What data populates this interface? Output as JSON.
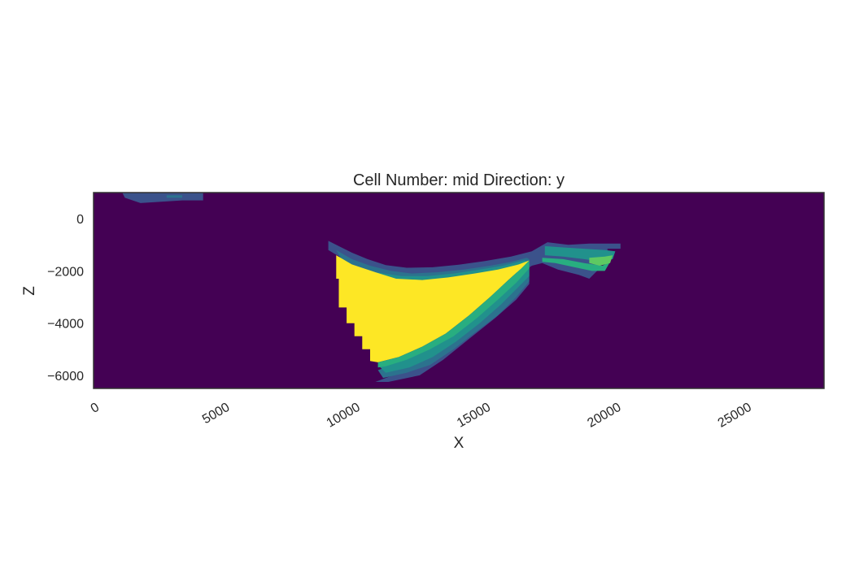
{
  "chart_data": {
    "type": "heatmap",
    "title": "Cell Number: mid Direction: y",
    "xlabel": "X",
    "ylabel": "Z",
    "xlim": [
      0,
      28000
    ],
    "ylim": [
      -6500,
      1000
    ],
    "x_ticks": [
      0,
      5000,
      10000,
      15000,
      20000,
      25000
    ],
    "x_tick_labels": [
      "0",
      "5000",
      "10000",
      "15000",
      "20000",
      "25000"
    ],
    "y_ticks": [
      0,
      -2000,
      -4000,
      -6000
    ],
    "y_tick_labels": [
      "0",
      "−2000",
      "−4000",
      "−6000"
    ],
    "grid": false,
    "colormap": "viridis",
    "colors": {
      "background": "#440154",
      "unit_1": "#3b528b",
      "unit_2": "#2c728e",
      "unit_3": "#21918c",
      "unit_4": "#28ae80",
      "unit_5": "#5ec962",
      "unit_6": "#fde725"
    },
    "regions": [
      {
        "name": "upper-left-thin-layer",
        "color_key": "unit_1",
        "polygon": [
          [
            1100,
            1000
          ],
          [
            3000,
            1000
          ],
          [
            4200,
            1000
          ],
          [
            4200,
            700
          ],
          [
            3400,
            700
          ],
          [
            2600,
            650
          ],
          [
            1800,
            600
          ],
          [
            1200,
            800
          ],
          [
            1100,
            1000
          ]
        ]
      },
      {
        "name": "upper-left-thin-layer-inner",
        "color_key": "unit_2",
        "polygon": [
          [
            2800,
            900
          ],
          [
            3400,
            900
          ],
          [
            3400,
            800
          ],
          [
            2800,
            800
          ]
        ]
      },
      {
        "name": "basin-upper-rim-outer",
        "color_key": "unit_1",
        "polygon": [
          [
            9000,
            -850
          ],
          [
            9400,
            -1050
          ],
          [
            9900,
            -1300
          ],
          [
            10500,
            -1550
          ],
          [
            11200,
            -1780
          ],
          [
            12000,
            -1880
          ],
          [
            13000,
            -1860
          ],
          [
            14000,
            -1760
          ],
          [
            15000,
            -1620
          ],
          [
            16000,
            -1450
          ],
          [
            16800,
            -1250
          ],
          [
            17400,
            -900
          ],
          [
            18200,
            -1000
          ],
          [
            19000,
            -950
          ],
          [
            20200,
            -950
          ],
          [
            20200,
            -1150
          ],
          [
            19700,
            -1150
          ],
          [
            19700,
            -1350
          ],
          [
            19500,
            -1600
          ],
          [
            19300,
            -2000
          ],
          [
            19000,
            -2300
          ],
          [
            18600,
            -2150
          ],
          [
            17800,
            -1950
          ],
          [
            17200,
            -1700
          ],
          [
            16800,
            -1800
          ],
          [
            16200,
            -2200
          ],
          [
            15600,
            -2600
          ],
          [
            15000,
            -3200
          ],
          [
            14300,
            -3800
          ],
          [
            13500,
            -4700
          ],
          [
            12800,
            -5200
          ],
          [
            12000,
            -5800
          ],
          [
            11200,
            -6100
          ],
          [
            10800,
            -6250
          ],
          [
            11300,
            -6250
          ],
          [
            12500,
            -6000
          ],
          [
            13400,
            -5400
          ],
          [
            14400,
            -4600
          ],
          [
            15400,
            -3800
          ],
          [
            16200,
            -3100
          ],
          [
            16700,
            -2500
          ],
          [
            16700,
            -1600
          ],
          [
            16000,
            -1700
          ],
          [
            15000,
            -1850
          ],
          [
            14000,
            -2000
          ],
          [
            13000,
            -2150
          ],
          [
            12000,
            -2300
          ],
          [
            11000,
            -2200
          ],
          [
            10200,
            -1900
          ],
          [
            9500,
            -1500
          ],
          [
            9000,
            -1200
          ]
        ]
      },
      {
        "name": "basin-upper-rim-middle",
        "color_key": "unit_2",
        "polygon": [
          [
            9300,
            -1200
          ],
          [
            9900,
            -1550
          ],
          [
            10600,
            -1800
          ],
          [
            11400,
            -2000
          ],
          [
            12200,
            -2100
          ],
          [
            13200,
            -2050
          ],
          [
            14200,
            -1950
          ],
          [
            15200,
            -1800
          ],
          [
            16000,
            -1650
          ],
          [
            16600,
            -1500
          ],
          [
            16700,
            -1550
          ],
          [
            16700,
            -2400
          ],
          [
            16200,
            -3000
          ],
          [
            15500,
            -3700
          ],
          [
            14700,
            -4300
          ],
          [
            13800,
            -5000
          ],
          [
            12900,
            -5600
          ],
          [
            12000,
            -5900
          ],
          [
            11100,
            -6100
          ],
          [
            10900,
            -5800
          ],
          [
            11800,
            -5500
          ],
          [
            12700,
            -5100
          ],
          [
            13600,
            -4500
          ],
          [
            14500,
            -3800
          ],
          [
            15300,
            -3100
          ],
          [
            16000,
            -2400
          ],
          [
            16500,
            -1900
          ],
          [
            15800,
            -1900
          ],
          [
            14800,
            -2050
          ],
          [
            13800,
            -2200
          ],
          [
            12800,
            -2300
          ],
          [
            11800,
            -2350
          ],
          [
            10800,
            -2200
          ],
          [
            10000,
            -1900
          ],
          [
            9500,
            -1550
          ]
        ]
      },
      {
        "name": "basin-upper-rim-inner",
        "color_key": "unit_3",
        "polygon": [
          [
            9400,
            -1450
          ],
          [
            10000,
            -1800
          ],
          [
            10800,
            -2050
          ],
          [
            11800,
            -2200
          ],
          [
            12800,
            -2200
          ],
          [
            13800,
            -2100
          ],
          [
            14800,
            -1950
          ],
          [
            15700,
            -1800
          ],
          [
            16500,
            -1600
          ],
          [
            16700,
            -1650
          ],
          [
            16700,
            -2200
          ],
          [
            16200,
            -2700
          ],
          [
            15600,
            -3300
          ],
          [
            14800,
            -4000
          ],
          [
            13900,
            -4700
          ],
          [
            13000,
            -5300
          ],
          [
            12100,
            -5700
          ],
          [
            11200,
            -5900
          ],
          [
            10900,
            -5600
          ],
          [
            11900,
            -5300
          ],
          [
            12800,
            -4900
          ],
          [
            13700,
            -4300
          ],
          [
            14600,
            -3600
          ],
          [
            15400,
            -2900
          ],
          [
            16100,
            -2200
          ],
          [
            16400,
            -1850
          ],
          [
            15700,
            -1950
          ],
          [
            14700,
            -2100
          ],
          [
            13700,
            -2250
          ],
          [
            12700,
            -2350
          ],
          [
            11700,
            -2400
          ],
          [
            10700,
            -2250
          ],
          [
            9900,
            -1950
          ],
          [
            9450,
            -1600
          ]
        ]
      },
      {
        "name": "basin-fill",
        "color_key": "unit_6",
        "polygon": [
          [
            9300,
            -1400
          ],
          [
            9900,
            -1750
          ],
          [
            10800,
            -2050
          ],
          [
            11600,
            -2300
          ],
          [
            12600,
            -2350
          ],
          [
            13600,
            -2250
          ],
          [
            14600,
            -2100
          ],
          [
            15500,
            -1950
          ],
          [
            16300,
            -1750
          ],
          [
            16700,
            -1600
          ],
          [
            16400,
            -1900
          ],
          [
            15900,
            -2350
          ],
          [
            15200,
            -3000
          ],
          [
            14400,
            -3700
          ],
          [
            13500,
            -4400
          ],
          [
            12600,
            -4900
          ],
          [
            11700,
            -5300
          ],
          [
            10900,
            -5500
          ],
          [
            10600,
            -5450
          ],
          [
            10600,
            -5000
          ],
          [
            10300,
            -5000
          ],
          [
            10300,
            -4500
          ],
          [
            10000,
            -4500
          ],
          [
            10000,
            -4000
          ],
          [
            9700,
            -4000
          ],
          [
            9700,
            -3400
          ],
          [
            9400,
            -3400
          ],
          [
            9400,
            -2300
          ],
          [
            9300,
            -2300
          ]
        ]
      },
      {
        "name": "basin-lower-rim",
        "color_key": "unit_4",
        "polygon": [
          [
            10900,
            -5500
          ],
          [
            11700,
            -5300
          ],
          [
            12600,
            -4900
          ],
          [
            13500,
            -4400
          ],
          [
            14400,
            -3700
          ],
          [
            15200,
            -3000
          ],
          [
            15900,
            -2350
          ],
          [
            16400,
            -1900
          ],
          [
            16700,
            -1600
          ],
          [
            16700,
            -1900
          ],
          [
            16200,
            -2450
          ],
          [
            15500,
            -3100
          ],
          [
            14700,
            -3800
          ],
          [
            13800,
            -4500
          ],
          [
            12900,
            -5000
          ],
          [
            12000,
            -5400
          ],
          [
            11200,
            -5650
          ],
          [
            10900,
            -5700
          ]
        ]
      },
      {
        "name": "right-limb-band-1",
        "color_key": "unit_3",
        "polygon": [
          [
            17300,
            -1050
          ],
          [
            18000,
            -1100
          ],
          [
            18800,
            -1150
          ],
          [
            19600,
            -1200
          ],
          [
            20000,
            -1250
          ],
          [
            19900,
            -1550
          ],
          [
            19500,
            -1650
          ],
          [
            18800,
            -1550
          ],
          [
            18000,
            -1450
          ],
          [
            17300,
            -1400
          ]
        ]
      },
      {
        "name": "right-limb-band-2",
        "color_key": "unit_4",
        "polygon": [
          [
            17200,
            -1500
          ],
          [
            18000,
            -1550
          ],
          [
            18800,
            -1700
          ],
          [
            19500,
            -1800
          ],
          [
            19800,
            -1650
          ],
          [
            19600,
            -2000
          ],
          [
            19100,
            -2000
          ],
          [
            18400,
            -1850
          ],
          [
            17700,
            -1700
          ],
          [
            17200,
            -1650
          ]
        ]
      },
      {
        "name": "right-limb-band-3",
        "color_key": "unit_5",
        "polygon": [
          [
            19000,
            -1500
          ],
          [
            19600,
            -1450
          ],
          [
            19900,
            -1400
          ],
          [
            19800,
            -1700
          ],
          [
            19400,
            -1800
          ],
          [
            19000,
            -1700
          ]
        ]
      }
    ]
  }
}
